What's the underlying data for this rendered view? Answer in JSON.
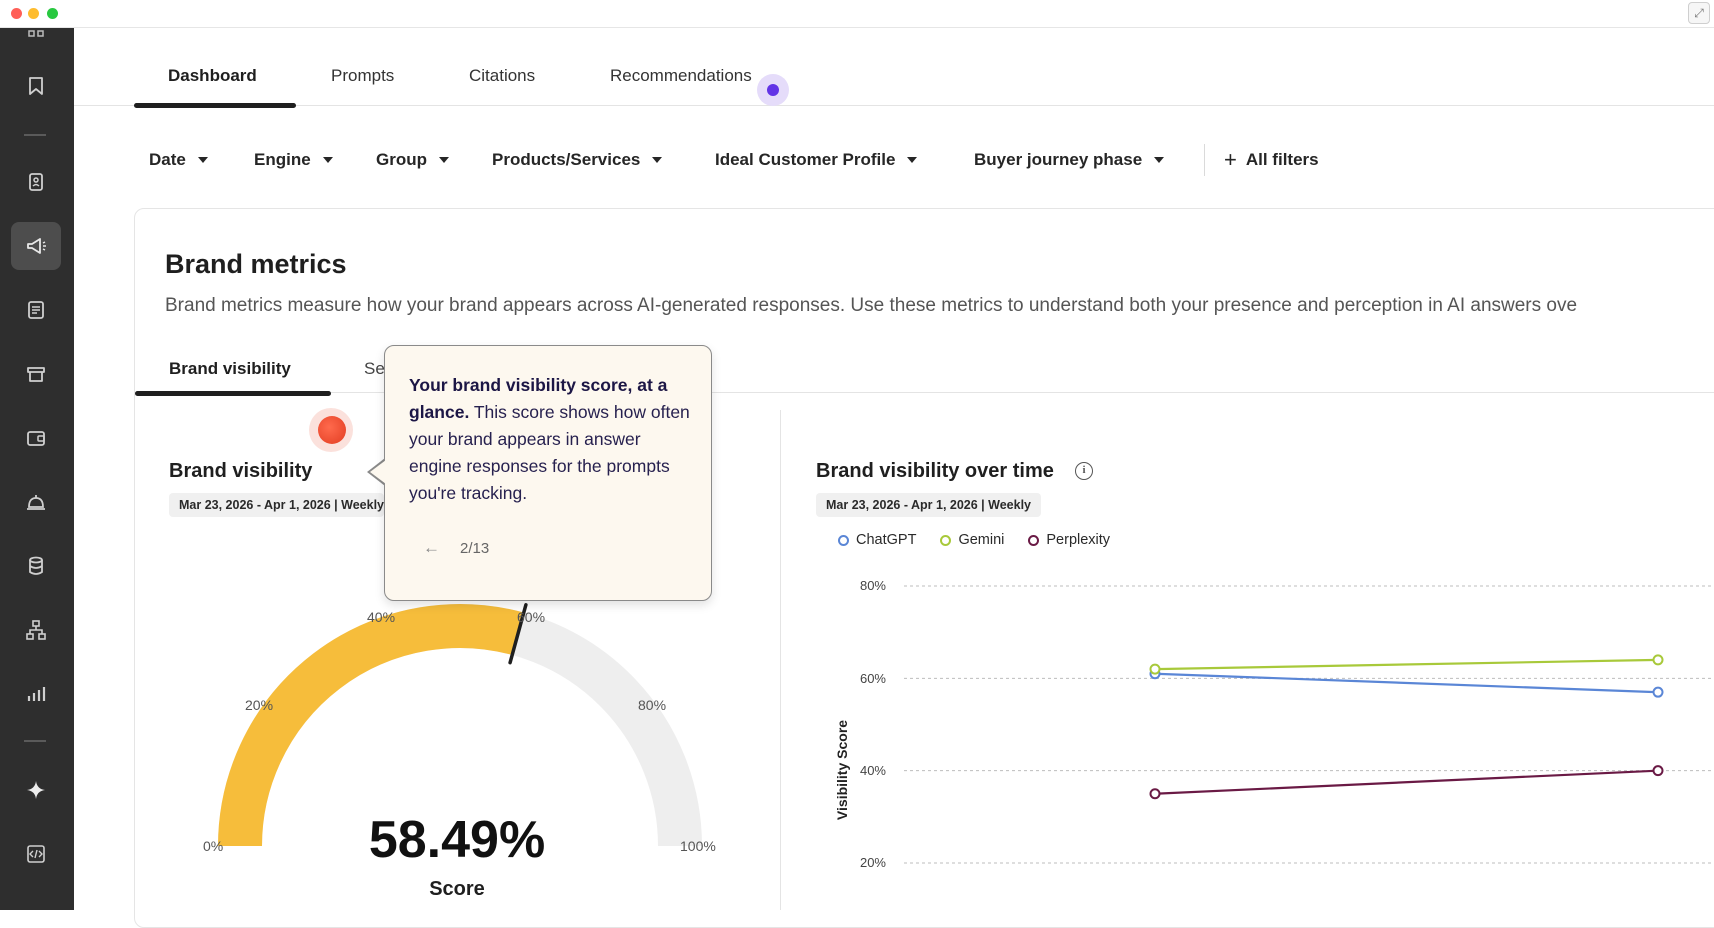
{
  "window": {
    "controls": [
      "close",
      "minimize",
      "zoom"
    ],
    "control_colors": [
      "#ff5f57",
      "#febc2e",
      "#28c840"
    ]
  },
  "sidebar": {
    "items": [
      {
        "icon": "grid-icon"
      },
      {
        "icon": "bookmark-icon"
      },
      {
        "icon": "contacts-icon"
      },
      {
        "icon": "megaphone-icon",
        "active": true
      },
      {
        "icon": "report-icon"
      },
      {
        "icon": "store-icon"
      },
      {
        "icon": "wallet-icon"
      },
      {
        "icon": "service-bell-icon"
      },
      {
        "icon": "database-icon"
      },
      {
        "icon": "org-chart-icon"
      },
      {
        "icon": "bar-chart-icon"
      },
      {
        "icon": "sparkle-icon"
      },
      {
        "icon": "code-icon"
      }
    ]
  },
  "nav": {
    "tabs": [
      {
        "label": "Dashboard",
        "active": true
      },
      {
        "label": "Prompts"
      },
      {
        "label": "Citations"
      },
      {
        "label": "Recommendations"
      }
    ],
    "indicator_color": "#6234e6"
  },
  "filters": {
    "items": [
      "Date",
      "Engine",
      "Group",
      "Products/Services",
      "Ideal Customer Profile",
      "Buyer journey phase"
    ],
    "all_filters_label": "All filters"
  },
  "card": {
    "title": "Brand metrics",
    "description": "Brand metrics measure how your brand appears across AI-generated responses. Use these metrics to understand both your presence and perception in AI answers ove",
    "subtabs": [
      {
        "label": "Brand visibility",
        "active": true
      },
      {
        "label": "Se"
      }
    ]
  },
  "visibility_panel": {
    "title": "Brand visibility",
    "date_range": "Mar 23, 2026 - Apr 1, 2026 | Weekly",
    "gauge": {
      "value_pct": 58.49,
      "value_text": "58.49%",
      "label": "Score",
      "tick_labels": [
        "0%",
        "20%",
        "40%",
        "60%",
        "80%",
        "100%"
      ],
      "fill_color": "#f6bd3b",
      "track_color": "#eeeeee"
    }
  },
  "tooltip": {
    "bold_text": "Your brand visibility score, at a glance.",
    "body_text": " This score shows how often your brand appears in answer engine responses for the prompts you're tracking.",
    "pager": "2/13"
  },
  "trend_panel": {
    "title": "Brand visibility over time",
    "date_range": "Mar 23, 2026 - Apr 1, 2026 | Weekly",
    "legend": [
      "ChatGPT",
      "Gemini",
      "Perplexity"
    ]
  },
  "chart_data": {
    "type": "line",
    "ylabel": "Visibility Score",
    "ylim": [
      20,
      80
    ],
    "y_ticks": [
      "80%",
      "60%",
      "40%",
      "20%"
    ],
    "grid": true,
    "legend_position": "top-left",
    "series": [
      {
        "name": "ChatGPT",
        "color": "#5a86d6",
        "values": [
          61,
          57
        ]
      },
      {
        "name": "Gemini",
        "color": "#a8c93a",
        "values": [
          62,
          64
        ]
      },
      {
        "name": "Perplexity",
        "color": "#6a1a45",
        "values": [
          35,
          40
        ]
      }
    ]
  }
}
